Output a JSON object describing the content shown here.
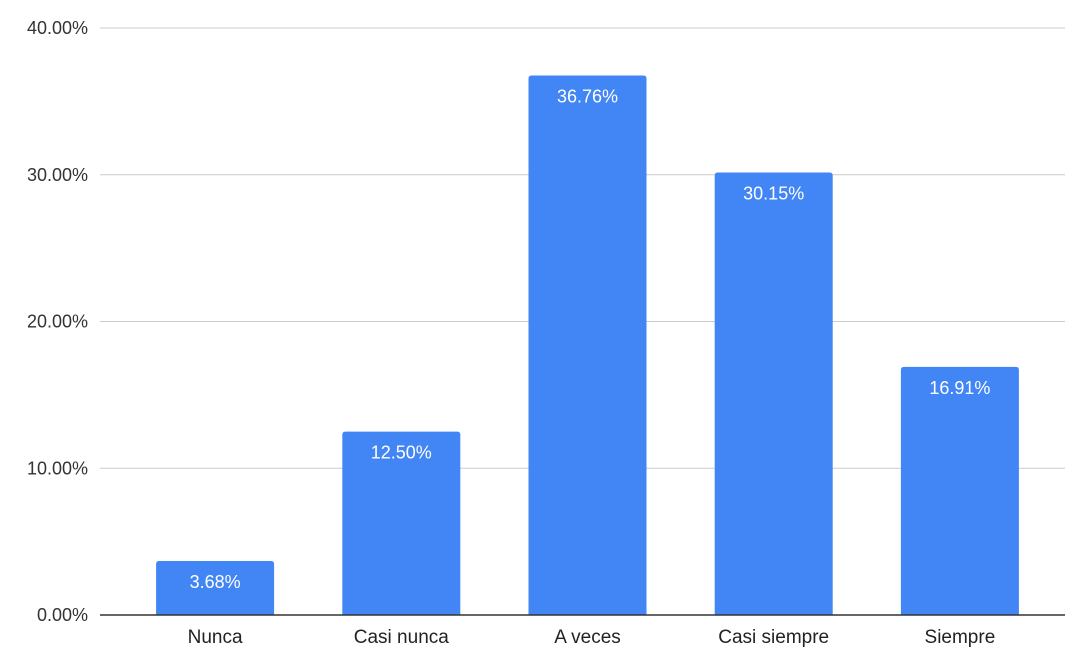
{
  "chart_data": {
    "type": "bar",
    "categories": [
      "Nunca",
      "Casi nunca",
      "A veces",
      "Casi siempre",
      "Siempre"
    ],
    "values": [
      3.68,
      12.5,
      36.76,
      30.15,
      16.91
    ],
    "data_labels": [
      "3.68%",
      "12.50%",
      "36.76%",
      "30.15%",
      "16.91%"
    ],
    "title": "",
    "xlabel": "",
    "ylabel": "",
    "ylim": [
      0,
      40
    ],
    "yticks": [
      0,
      10,
      20,
      30,
      40
    ],
    "ytick_labels": [
      "0.00%",
      "10.00%",
      "20.00%",
      "30.00%",
      "40.00%"
    ],
    "grid": true,
    "legend": "none",
    "colors": {
      "bar": "#4285F4",
      "grid": "#cccccc",
      "axis": "#333333",
      "label": "#ffffff"
    }
  }
}
